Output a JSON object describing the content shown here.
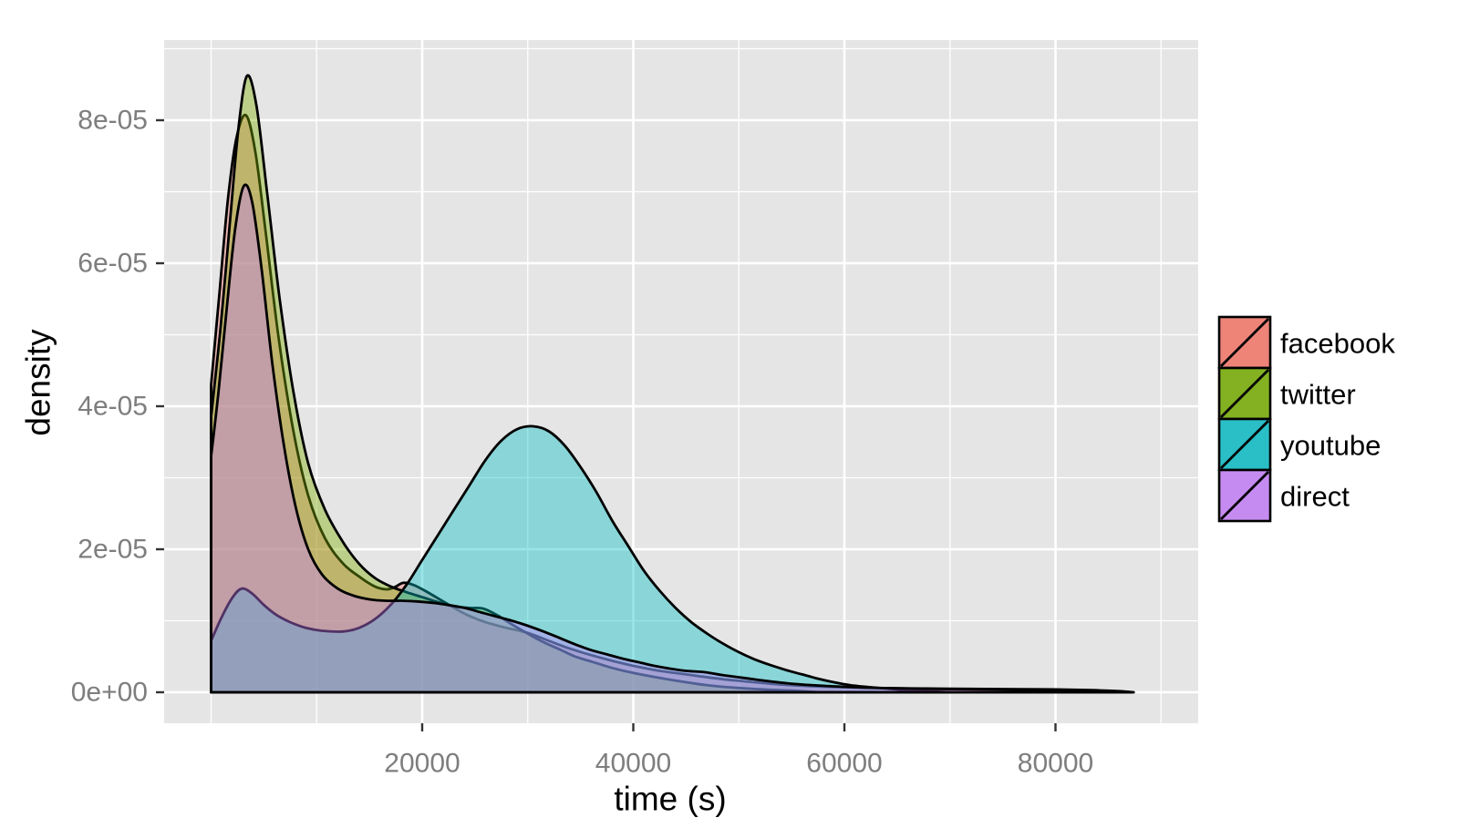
{
  "axes": {
    "x": {
      "title": "time (s)",
      "tick_values": [
        20000,
        40000,
        60000,
        80000
      ],
      "tick_labels": [
        "20000",
        "40000",
        "60000",
        "80000"
      ],
      "minor_values": [
        0,
        10000,
        30000,
        50000,
        70000,
        90000
      ]
    },
    "y": {
      "title": "density",
      "tick_values": [
        0,
        2e-05,
        4e-05,
        6e-05,
        8e-05
      ],
      "tick_labels": [
        "0e+00",
        "2e-05",
        "4e-05",
        "6e-05",
        "8e-05"
      ],
      "minor_values": [
        1e-05,
        3e-05,
        5e-05,
        7e-05,
        9e-05
      ]
    }
  },
  "legend": {
    "entries": [
      {
        "label": "facebook",
        "swatch_color": "#EE8378"
      },
      {
        "label": "twitter",
        "swatch_color": "#83B121"
      },
      {
        "label": "youtube",
        "swatch_color": "#2ABEC6"
      },
      {
        "label": "direct",
        "swatch_color": "#C68BF0"
      }
    ]
  },
  "style": {
    "panel_fill": "#E5E5E5",
    "grid_major_color": "#FFFFFF",
    "grid_minor_color": "#FFFFFF",
    "tick_mark_color": "#333333",
    "tick_label_color": "#7E7E7E",
    "axis_title_color": "#000000",
    "curve_stroke": "#000000",
    "fill_alpha": 0.4
  },
  "chart_data": {
    "type": "area",
    "subtype": "kernel-density",
    "xlabel": "time (s)",
    "ylabel": "density",
    "xlim": [
      -4500,
      93500
    ],
    "ylim": [
      0,
      9.15e-05
    ],
    "grid": true,
    "legend_position": "right",
    "series": [
      {
        "name": "facebook",
        "color": "#F8766D",
        "points": [
          [
            0,
            4.3e-05
          ],
          [
            800,
            5.6e-05
          ],
          [
            1600,
            6.9e-05
          ],
          [
            2400,
            7.75e-05
          ],
          [
            3300,
            8.07e-05
          ],
          [
            4200,
            7.55e-05
          ],
          [
            5200,
            6.4e-05
          ],
          [
            6400,
            4.95e-05
          ],
          [
            7800,
            3.65e-05
          ],
          [
            9200,
            2.75e-05
          ],
          [
            10800,
            2.15e-05
          ],
          [
            12500,
            1.8e-05
          ],
          [
            14000,
            1.62e-05
          ],
          [
            15500,
            1.48e-05
          ],
          [
            16600,
            1.44e-05
          ],
          [
            17400,
            1.47e-05
          ],
          [
            18200,
            1.53e-05
          ],
          [
            19200,
            1.5e-05
          ],
          [
            20500,
            1.4e-05
          ],
          [
            22000,
            1.27e-05
          ],
          [
            24000,
            1.1e-05
          ],
          [
            26000,
            9.8e-06
          ],
          [
            28000,
            9e-06
          ],
          [
            30000,
            8.3e-06
          ],
          [
            32000,
            7.2e-06
          ],
          [
            34000,
            6.1e-06
          ],
          [
            36000,
            5.2e-06
          ],
          [
            38000,
            4.4e-06
          ],
          [
            40000,
            3.7e-06
          ],
          [
            42500,
            3e-06
          ],
          [
            45000,
            2.5e-06
          ],
          [
            47500,
            2e-06
          ],
          [
            50000,
            1.6e-06
          ],
          [
            53000,
            1.2e-06
          ],
          [
            56000,
            9e-07
          ],
          [
            60000,
            7e-07
          ],
          [
            65000,
            5.5e-07
          ],
          [
            70000,
            5e-07
          ],
          [
            75000,
            4.5e-07
          ],
          [
            80000,
            4e-07
          ],
          [
            83500,
            3e-07
          ],
          [
            86000,
            1.5e-07
          ],
          [
            87300,
            0
          ]
        ]
      },
      {
        "name": "twitter",
        "color": "#7CAE00",
        "points": [
          [
            0,
            3.85e-05
          ],
          [
            900,
            5.1e-05
          ],
          [
            1800,
            6.6e-05
          ],
          [
            2600,
            7.9e-05
          ],
          [
            3400,
            8.62e-05
          ],
          [
            4300,
            8.2e-05
          ],
          [
            5300,
            7e-05
          ],
          [
            6500,
            5.5e-05
          ],
          [
            7800,
            4.2e-05
          ],
          [
            9200,
            3.2e-05
          ],
          [
            10800,
            2.55e-05
          ],
          [
            12500,
            2.1e-05
          ],
          [
            14000,
            1.8e-05
          ],
          [
            15500,
            1.6e-05
          ],
          [
            17000,
            1.48e-05
          ],
          [
            18500,
            1.4e-05
          ],
          [
            20000,
            1.33e-05
          ],
          [
            21500,
            1.26e-05
          ],
          [
            23000,
            1.2e-05
          ],
          [
            24500,
            1.18e-05
          ],
          [
            25800,
            1.17e-05
          ],
          [
            27200,
            1.07e-05
          ],
          [
            28600,
            9.4e-06
          ],
          [
            30000,
            8.2e-06
          ],
          [
            31500,
            7e-06
          ],
          [
            33000,
            6e-06
          ],
          [
            34500,
            5e-06
          ],
          [
            36000,
            4.3e-06
          ],
          [
            38000,
            3.4e-06
          ],
          [
            40000,
            2.7e-06
          ],
          [
            42500,
            2e-06
          ],
          [
            45000,
            1.4e-06
          ],
          [
            47500,
            9e-07
          ],
          [
            50000,
            6e-07
          ],
          [
            53000,
            3.5e-07
          ],
          [
            55500,
            2e-07
          ],
          [
            57500,
            0
          ]
        ]
      },
      {
        "name": "youtube",
        "color": "#00BFC4",
        "points": [
          [
            0,
            7.2e-06
          ],
          [
            1000,
            1.05e-05
          ],
          [
            2000,
            1.32e-05
          ],
          [
            2900,
            1.45e-05
          ],
          [
            3900,
            1.38e-05
          ],
          [
            5000,
            1.22e-05
          ],
          [
            6200,
            1.08e-05
          ],
          [
            7500,
            9.8e-06
          ],
          [
            9000,
            9e-06
          ],
          [
            10500,
            8.6e-06
          ],
          [
            12500,
            8.5e-06
          ],
          [
            14000,
            9e-06
          ],
          [
            15500,
            1.02e-05
          ],
          [
            17000,
            1.22e-05
          ],
          [
            18500,
            1.5e-05
          ],
          [
            20000,
            1.85e-05
          ],
          [
            21500,
            2.2e-05
          ],
          [
            23000,
            2.55e-05
          ],
          [
            24500,
            2.9e-05
          ],
          [
            26000,
            3.25e-05
          ],
          [
            27500,
            3.52e-05
          ],
          [
            29000,
            3.68e-05
          ],
          [
            30500,
            3.72e-05
          ],
          [
            32000,
            3.65e-05
          ],
          [
            33500,
            3.45e-05
          ],
          [
            35000,
            3.15e-05
          ],
          [
            36500,
            2.8e-05
          ],
          [
            38000,
            2.4e-05
          ],
          [
            39500,
            2.05e-05
          ],
          [
            41000,
            1.7e-05
          ],
          [
            42500,
            1.42e-05
          ],
          [
            44000,
            1.18e-05
          ],
          [
            45500,
            9.8e-06
          ],
          [
            47000,
            8.2e-06
          ],
          [
            48500,
            6.8e-06
          ],
          [
            50000,
            5.6e-06
          ],
          [
            51500,
            4.6e-06
          ],
          [
            53000,
            3.8e-06
          ],
          [
            54500,
            3.1e-06
          ],
          [
            56000,
            2.5e-06
          ],
          [
            57500,
            1.9e-06
          ],
          [
            59000,
            1.4e-06
          ],
          [
            60500,
            1e-06
          ],
          [
            62500,
            7e-07
          ],
          [
            64500,
            4.5e-07
          ],
          [
            66500,
            2.5e-07
          ],
          [
            68500,
            1e-07
          ],
          [
            70000,
            0
          ]
        ]
      },
      {
        "name": "direct",
        "color": "#C77CFF",
        "points": [
          [
            0,
            3.3e-05
          ],
          [
            700,
            4.2e-05
          ],
          [
            1500,
            5.4e-05
          ],
          [
            2300,
            6.5e-05
          ],
          [
            3100,
            7.08e-05
          ],
          [
            3900,
            6.85e-05
          ],
          [
            4800,
            5.9e-05
          ],
          [
            5800,
            4.6e-05
          ],
          [
            6900,
            3.45e-05
          ],
          [
            8000,
            2.6e-05
          ],
          [
            9200,
            2e-05
          ],
          [
            10500,
            1.65e-05
          ],
          [
            12000,
            1.45e-05
          ],
          [
            13500,
            1.35e-05
          ],
          [
            15000,
            1.3e-05
          ],
          [
            16500,
            1.28e-05
          ],
          [
            18000,
            1.28e-05
          ],
          [
            19500,
            1.27e-05
          ],
          [
            21000,
            1.25e-05
          ],
          [
            22500,
            1.22e-05
          ],
          [
            24000,
            1.18e-05
          ],
          [
            25500,
            1.12e-05
          ],
          [
            27000,
            1.06e-05
          ],
          [
            28500,
            1e-05
          ],
          [
            30000,
            9.3e-06
          ],
          [
            31500,
            8.5e-06
          ],
          [
            33000,
            7.6e-06
          ],
          [
            34500,
            6.7e-06
          ],
          [
            36000,
            5.9e-06
          ],
          [
            37500,
            5.3e-06
          ],
          [
            39000,
            4.7e-06
          ],
          [
            40500,
            4.2e-06
          ],
          [
            42000,
            3.7e-06
          ],
          [
            43500,
            3.3e-06
          ],
          [
            45000,
            3e-06
          ],
          [
            46800,
            2.8e-06
          ],
          [
            48500,
            2.4e-06
          ],
          [
            50500,
            2e-06
          ],
          [
            52500,
            1.6e-06
          ],
          [
            55000,
            1.2e-06
          ],
          [
            58000,
            9e-07
          ],
          [
            61000,
            7e-07
          ],
          [
            65000,
            5.5e-07
          ],
          [
            69000,
            4.5e-07
          ],
          [
            73000,
            4e-07
          ],
          [
            77000,
            3.5e-07
          ],
          [
            80500,
            3e-07
          ],
          [
            83000,
            2.5e-07
          ],
          [
            85000,
            1.8e-07
          ],
          [
            86500,
            8e-08
          ],
          [
            87400,
            0
          ]
        ]
      }
    ]
  }
}
